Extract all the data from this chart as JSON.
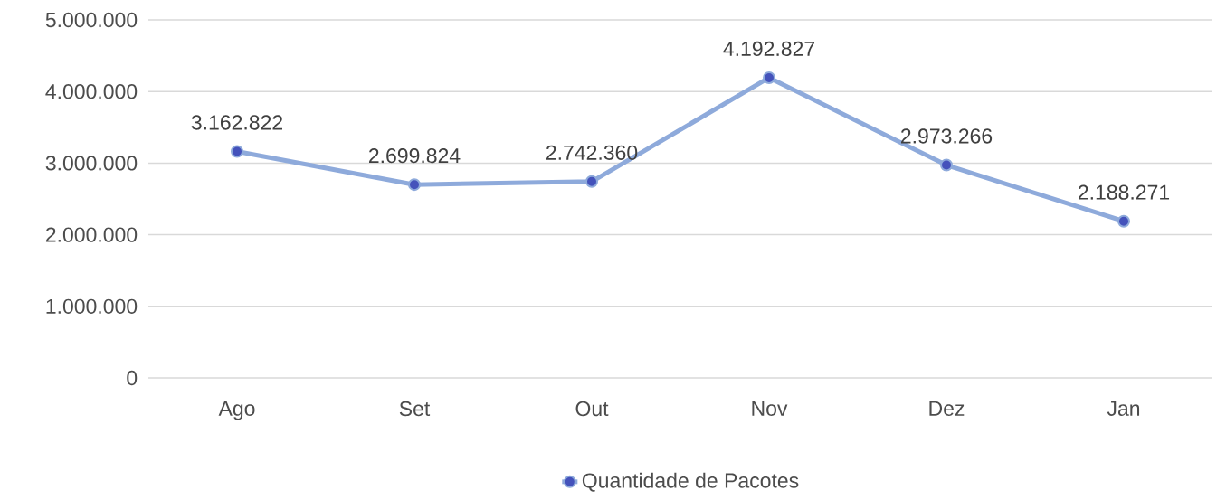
{
  "chart_data": {
    "type": "line",
    "categories": [
      "Ago",
      "Set",
      "Out",
      "Nov",
      "Dez",
      "Jan"
    ],
    "series": [
      {
        "name": "Quantidade de Pacotes",
        "color": "#8eaadb",
        "values": [
          3162822,
          2699824,
          2742360,
          4192827,
          2973266,
          2188271
        ],
        "value_labels": [
          "3.162.822",
          "2.699.824",
          "2.742.360",
          "4.192.827",
          "2.973.266",
          "2.188.271"
        ]
      }
    ],
    "ylim": [
      0,
      5000000
    ],
    "yticks": [
      0,
      {
        "value": 1000000,
        "label": "1.000.000"
      },
      {
        "value": 2000000,
        "label": "2.000.000"
      },
      {
        "value": 3000000,
        "label": "3.000.000"
      },
      {
        "value": 4000000,
        "label": "4.000.000"
      },
      {
        "value": 5000000,
        "label": "5.000.000"
      }
    ],
    "grid": "y",
    "legend": "bottom",
    "marker": "circle",
    "line_style": "solid"
  }
}
